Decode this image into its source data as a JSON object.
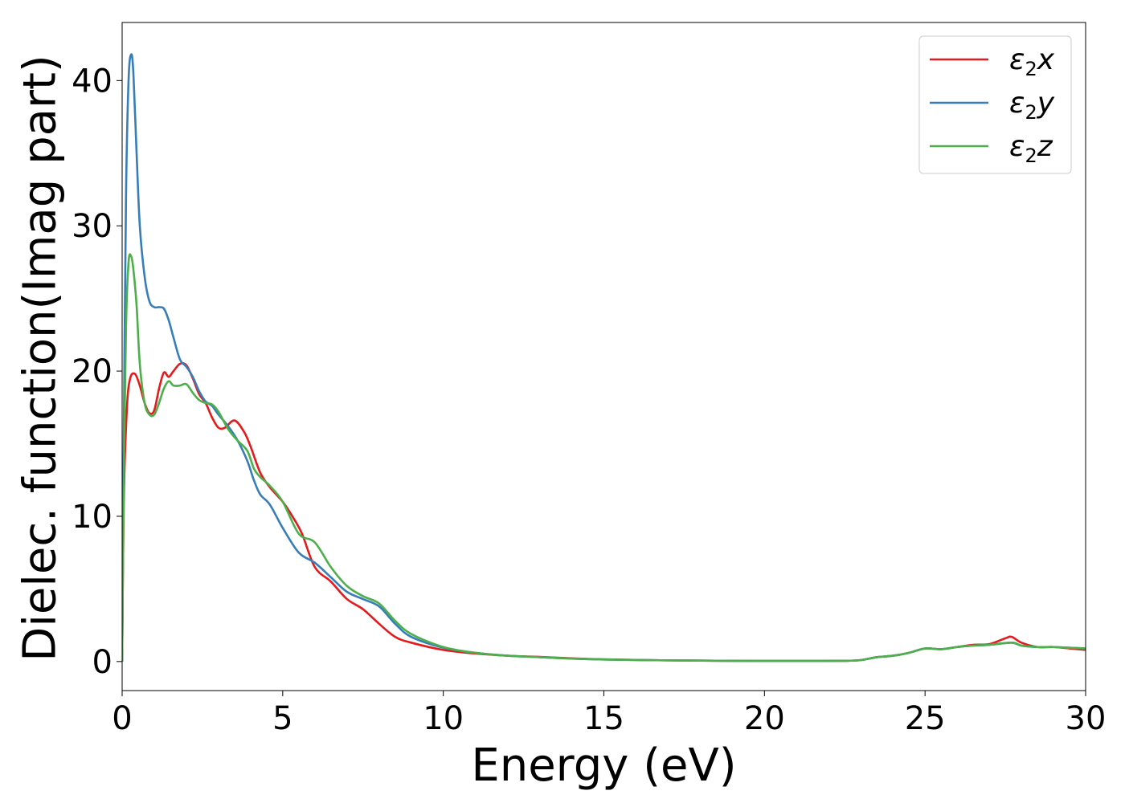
{
  "chart_data": {
    "type": "line",
    "xlabel": "Energy (eV)",
    "ylabel": "Dielec. function(Imag part)",
    "xlim": [
      0,
      30
    ],
    "ylim": [
      -2,
      44
    ],
    "xticks": [
      0,
      5,
      10,
      15,
      20,
      25,
      30
    ],
    "xtick_labels": [
      "0",
      "5",
      "10",
      "15",
      "20",
      "25",
      "30"
    ],
    "yticks": [
      0,
      10,
      20,
      30,
      40
    ],
    "ytick_labels": [
      "0",
      "10",
      "20",
      "30",
      "40"
    ],
    "grid": false,
    "legend_position": "top-right",
    "series": [
      {
        "name": "ε2x",
        "legend": {
          "base": "ε",
          "sub": "2",
          "var": "x"
        },
        "color": "#e41a1c",
        "x": [
          0,
          0.05,
          0.15,
          0.25,
          0.4,
          0.55,
          0.7,
          0.85,
          1.0,
          1.15,
          1.3,
          1.45,
          1.6,
          1.8,
          2.0,
          2.2,
          2.4,
          2.6,
          2.8,
          3.0,
          3.2,
          3.5,
          3.8,
          4.0,
          4.3,
          4.6,
          5.0,
          5.3,
          5.6,
          6.0,
          6.5,
          7.0,
          7.5,
          8.0,
          8.5,
          9.0,
          10.0,
          11.0,
          12.0,
          13.0,
          14.0,
          15.0,
          17.0,
          19.0,
          21.0,
          22.5,
          23.0,
          23.5,
          24.0,
          24.5,
          25.0,
          25.5,
          26.0,
          26.5,
          27.0,
          27.5,
          27.7,
          28.0,
          28.5,
          29.0,
          29.5,
          30.0
        ],
        "y": [
          0,
          11,
          17.5,
          19.5,
          19.8,
          19.0,
          17.8,
          17.1,
          17.3,
          18.8,
          19.9,
          19.6,
          20.0,
          20.5,
          20.4,
          19.5,
          18.4,
          17.8,
          16.8,
          16.1,
          16.1,
          16.6,
          15.8,
          14.8,
          13.0,
          12.0,
          11.0,
          10.0,
          8.8,
          6.5,
          5.5,
          4.3,
          3.6,
          2.6,
          1.7,
          1.3,
          0.8,
          0.55,
          0.4,
          0.32,
          0.22,
          0.15,
          0.08,
          0.05,
          0.04,
          0.05,
          0.1,
          0.3,
          0.4,
          0.6,
          0.9,
          0.85,
          1.0,
          1.15,
          1.2,
          1.6,
          1.7,
          1.3,
          1.0,
          1.0,
          0.9,
          0.8
        ]
      },
      {
        "name": "ε2y",
        "legend": {
          "base": "ε",
          "sub": "2",
          "var": "y"
        },
        "color": "#377eb8",
        "x": [
          0,
          0.05,
          0.12,
          0.2,
          0.28,
          0.35,
          0.45,
          0.55,
          0.7,
          0.85,
          1.0,
          1.15,
          1.3,
          1.45,
          1.6,
          1.8,
          2.0,
          2.2,
          2.4,
          2.6,
          2.8,
          3.0,
          3.3,
          3.6,
          3.9,
          4.1,
          4.3,
          4.6,
          5.0,
          5.5,
          6.0,
          6.5,
          7.0,
          7.5,
          8.0,
          8.5,
          9.0,
          10.0,
          11.0,
          12.0,
          13.0,
          14.0,
          15.0,
          17.0,
          19.0,
          21.0,
          22.5,
          23.0,
          23.5,
          24.0,
          24.5,
          25.0,
          25.5,
          26.0,
          26.5,
          27.0,
          27.7,
          28.0,
          28.5,
          29.0,
          29.5,
          30.0
        ],
        "y": [
          0,
          15,
          32,
          40,
          41.8,
          40.5,
          35,
          30,
          26.5,
          24.8,
          24.4,
          24.4,
          24.3,
          23.5,
          22.3,
          20.8,
          20.3,
          19.6,
          18.6,
          17.9,
          17.6,
          17.0,
          16.2,
          15.2,
          13.8,
          12.5,
          11.5,
          10.8,
          9.2,
          7.5,
          6.8,
          5.8,
          4.8,
          4.3,
          3.8,
          2.6,
          1.7,
          0.95,
          0.6,
          0.4,
          0.3,
          0.2,
          0.14,
          0.08,
          0.05,
          0.04,
          0.05,
          0.1,
          0.3,
          0.4,
          0.6,
          0.9,
          0.85,
          1.0,
          1.1,
          1.15,
          1.3,
          1.1,
          1.0,
          1.0,
          0.95,
          0.9
        ]
      },
      {
        "name": "ε2z",
        "legend": {
          "base": "ε",
          "sub": "2",
          "var": "z"
        },
        "color": "#4daf4a",
        "x": [
          0,
          0.05,
          0.12,
          0.2,
          0.28,
          0.35,
          0.45,
          0.55,
          0.7,
          0.85,
          1.0,
          1.15,
          1.3,
          1.45,
          1.6,
          1.8,
          2.0,
          2.2,
          2.4,
          2.6,
          2.8,
          3.0,
          3.3,
          3.6,
          3.9,
          4.1,
          4.3,
          4.6,
          5.0,
          5.5,
          6.0,
          6.5,
          7.0,
          7.5,
          8.0,
          8.5,
          9.0,
          10.0,
          11.0,
          12.0,
          13.0,
          14.0,
          15.0,
          17.0,
          19.0,
          21.0,
          22.5,
          23.0,
          23.5,
          24.0,
          24.5,
          25.0,
          25.5,
          26.0,
          26.5,
          27.0,
          27.7,
          28.0,
          28.5,
          29.0,
          29.5,
          30.0
        ],
        "y": [
          0,
          12,
          23,
          27.5,
          27.9,
          27.0,
          24.5,
          20.5,
          17.8,
          17.0,
          17.0,
          17.8,
          18.8,
          19.3,
          19.0,
          19.0,
          19.1,
          18.5,
          18.0,
          17.8,
          17.7,
          17.2,
          16.0,
          15.2,
          14.5,
          13.3,
          12.7,
          12.1,
          11.0,
          8.8,
          8.2,
          6.5,
          5.2,
          4.5,
          4.0,
          2.8,
          1.9,
          1.0,
          0.6,
          0.4,
          0.3,
          0.2,
          0.14,
          0.08,
          0.05,
          0.04,
          0.05,
          0.1,
          0.3,
          0.4,
          0.6,
          0.9,
          0.85,
          1.0,
          1.1,
          1.15,
          1.3,
          1.1,
          1.0,
          1.0,
          0.95,
          0.9
        ]
      }
    ]
  }
}
